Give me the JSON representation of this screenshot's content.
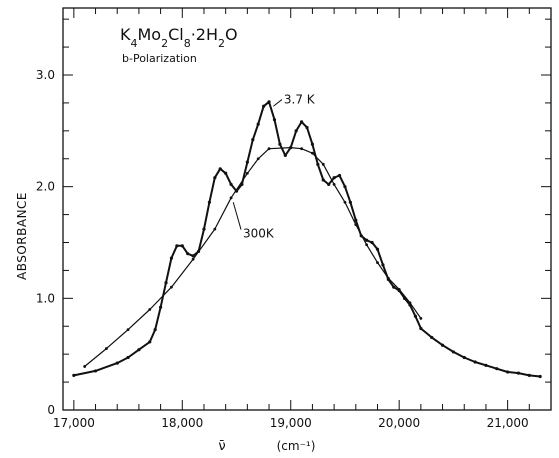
{
  "chart_data": {
    "type": "line",
    "title_formula": "K4Mo2Cl8·2H2O",
    "title_parts": {
      "k": "K",
      "k_sub": "4",
      "mo": "Mo",
      "mo_sub": "2",
      "cl": "Cl",
      "cl_sub": "8",
      "dot": "·2H",
      "h_sub": "2",
      "o": "O"
    },
    "subtitle": "b-Polarization",
    "ylabel": "ABSORBANCE",
    "xlabel_symbol": "ν̄",
    "xlabel_unit": "(cm⁻¹)",
    "xlim": [
      16900,
      21400
    ],
    "ylim": [
      0,
      3.6
    ],
    "x_ticks": [
      {
        "value": 17000,
        "label": "17,000"
      },
      {
        "value": 18000,
        "label": "18,000"
      },
      {
        "value": 19000,
        "label": "19,000"
      },
      {
        "value": 20000,
        "label": "20,000"
      },
      {
        "value": 21000,
        "label": "21,000"
      }
    ],
    "y_ticks": [
      {
        "value": 0,
        "label": "0"
      },
      {
        "value": 1.0,
        "label": "1.0"
      },
      {
        "value": 2.0,
        "label": "2.0"
      },
      {
        "value": 3.0,
        "label": "3.0"
      }
    ],
    "annotations": [
      {
        "text": "3.7 K",
        "x": 18900,
        "y": 2.78
      },
      {
        "text": "300K",
        "x": 18560,
        "y": 1.58
      }
    ],
    "series": [
      {
        "name": "3.7 K",
        "color": "#111111",
        "x": [
          17000,
          17200,
          17400,
          17500,
          17600,
          17700,
          17750,
          17800,
          17850,
          17900,
          17950,
          18000,
          18050,
          18100,
          18150,
          18200,
          18250,
          18300,
          18350,
          18400,
          18450,
          18500,
          18550,
          18600,
          18650,
          18700,
          18750,
          18800,
          18850,
          18900,
          18950,
          19000,
          19050,
          19100,
          19150,
          19200,
          19250,
          19300,
          19350,
          19400,
          19450,
          19500,
          19550,
          19600,
          19650,
          19700,
          19750,
          19800,
          19850,
          19900,
          19950,
          20000,
          20050,
          20100,
          20150,
          20200,
          20300,
          20400,
          20500,
          20600,
          20700,
          20800,
          20900,
          21000,
          21100,
          21200,
          21300
        ],
        "y": [
          0.31,
          0.35,
          0.42,
          0.47,
          0.54,
          0.61,
          0.72,
          0.92,
          1.14,
          1.36,
          1.47,
          1.47,
          1.4,
          1.38,
          1.42,
          1.62,
          1.86,
          2.08,
          2.16,
          2.12,
          2.02,
          1.96,
          2.02,
          2.22,
          2.42,
          2.56,
          2.72,
          2.76,
          2.6,
          2.38,
          2.28,
          2.35,
          2.5,
          2.58,
          2.53,
          2.38,
          2.2,
          2.06,
          2.02,
          2.08,
          2.1,
          2.0,
          1.86,
          1.7,
          1.56,
          1.52,
          1.5,
          1.44,
          1.3,
          1.17,
          1.1,
          1.07,
          1.0,
          0.94,
          0.84,
          0.73,
          0.65,
          0.58,
          0.52,
          0.47,
          0.43,
          0.4,
          0.37,
          0.34,
          0.33,
          0.31,
          0.3
        ]
      },
      {
        "name": "300K",
        "color": "#111111",
        "x": [
          17100,
          17300,
          17500,
          17700,
          17900,
          18100,
          18300,
          18450,
          18600,
          18700,
          18800,
          19000,
          19100,
          19200,
          19300,
          19400,
          19500,
          19600,
          19700,
          19800,
          19900,
          20000,
          20100,
          20200
        ],
        "y": [
          0.39,
          0.55,
          0.72,
          0.9,
          1.1,
          1.35,
          1.62,
          1.9,
          2.12,
          2.25,
          2.34,
          2.35,
          2.34,
          2.3,
          2.2,
          2.02,
          1.86,
          1.66,
          1.48,
          1.32,
          1.18,
          1.08,
          0.96,
          0.82
        ]
      }
    ]
  }
}
